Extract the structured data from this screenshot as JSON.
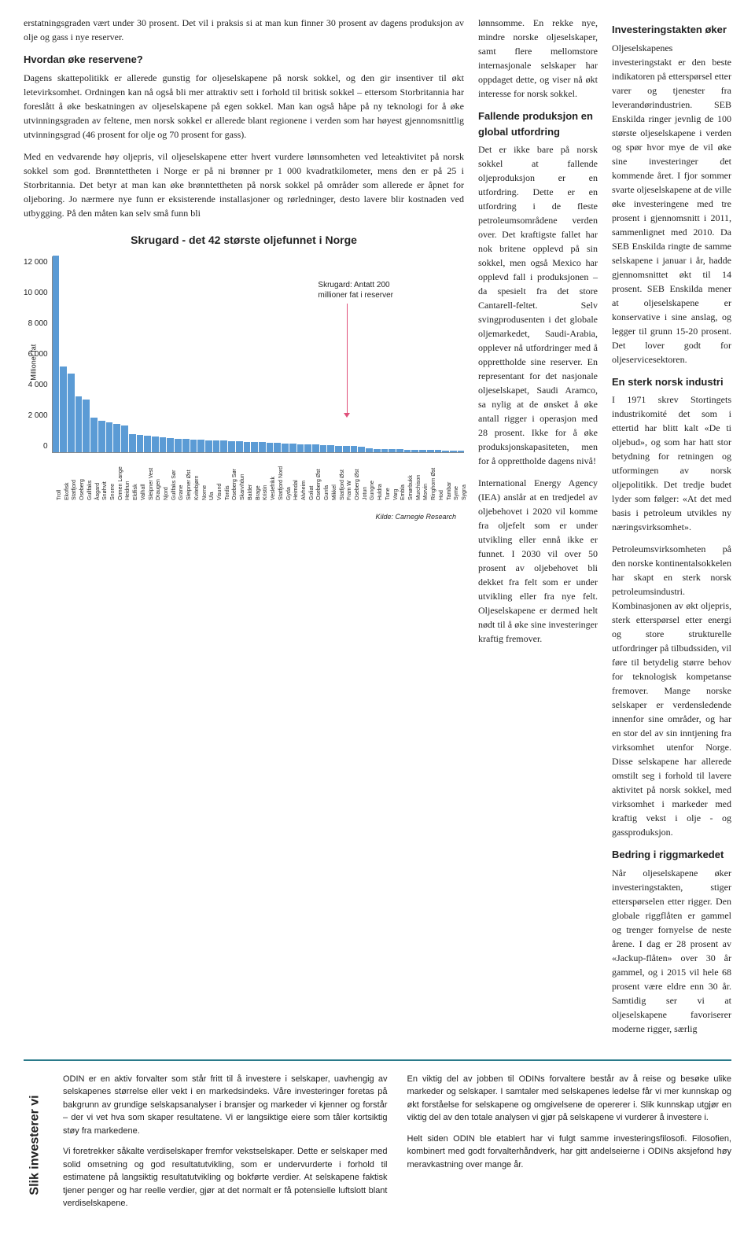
{
  "col1": {
    "p1": "erstatningsgraden vært under 30 prosent. Det vil i praksis si at man kun finner 30 prosent av dagens produksjon av olje og gass i nye reserver.",
    "h1": "Hvordan øke reservene?",
    "p2": "Dagens skattepolitikk er allerede gunstig for oljeselskapene på norsk sokkel, og den gir insentiver til økt letevirksomhet. Ordningen kan nå også bli mer attraktiv sett i forhold til britisk sokkel – ettersom Storbritannia har foreslått å øke beskatningen av oljeselskapene på egen sokkel. Man kan også håpe på ny teknologi for å øke utvinningsgraden av feltene, men norsk sokkel er allerede blant regionene i verden som har høyest gjennomsnittlig utvinningsgrad (46 prosent for olje og 70 prosent for gass).",
    "p3": "Med en vedvarende høy oljepris, vil oljeselskapene etter hvert vurdere lønnsomheten ved leteaktivitet på norsk sokkel som god. Brønntettheten i Norge er på ni brønner pr 1 000 kvadratkilometer, mens den er på 25 i Storbritannia. Det betyr at man kan øke brønntettheten på norsk sokkel på områder som allerede er åpnet for oljeboring. Jo nærmere nye funn er eksisterende installasjoner og rørledninger, desto lavere blir kostnaden ved utbygging. På den måten kan selv små funn bli"
  },
  "col2": {
    "p1": "lønnsomme. En rekke nye, mindre norske oljeselskaper, samt flere mellomstore internasjonale selskaper har oppdaget dette, og viser nå økt interesse for norsk sokkel.",
    "h1": "Fallende produksjon en global utfordring",
    "p2": "Det er ikke bare på norsk sokkel at fallende oljeproduksjon er en utfordring. Dette er en utfordring i de fleste petroleumsområdene verden over. Det kraftigste fallet har nok britene opplevd på sin sokkel, men også Mexico har opplevd fall i produksjonen – da spesielt fra det store Cantarell-feltet. Selv svingprodusenten i det globale oljemarkedet, Saudi-Arabia, opplever nå utfordringer med å opprettholde sine reserver. En representant for det nasjonale oljeselskapet, Saudi Aramco, sa nylig at de ønsket å øke antall rigger i operasjon med 28 prosent. Ikke for å øke produksjonskapasiteten, men for å opprettholde dagens nivå!",
    "p3": "International Energy Agency (IEA) anslår at en tredjedel av oljebehovet i 2020 vil komme fra oljefelt som er under utvikling eller ennå ikke er funnet. I 2030 vil over 50 prosent av oljebehovet bli dekket fra felt som er under utvikling eller fra nye felt. Oljeselskapene er dermed helt nødt til å øke sine investeringer kraftig fremover."
  },
  "col3": {
    "h1": "Investeringstakten øker",
    "p1": "Oljeselskapenes investeringstakt er den beste indikatoren på etterspørsel etter varer og tjenester fra leverandørindustrien. SEB Enskilda ringer jevnlig de 100 største oljeselskapene i verden og spør hvor mye de vil øke sine investeringer det kommende året. I fjor sommer svarte oljeselskapene at de ville øke investeringene med tre prosent i gjennomsnitt i 2011, sammenlignet med 2010. Da SEB Enskilda ringte de samme selskapene i januar i år, hadde gjennomsnittet økt til 14 prosent. SEB Enskilda mener at oljeselskapene er konservative i sine anslag, og legger til grunn 15-20 prosent. Det lover godt for oljeservicesektoren.",
    "h2": "En sterk norsk industri",
    "p2": "I 1971 skrev Stortingets industrikomité det som i ettertid har blitt kalt «De ti oljebud», og som har hatt stor betydning for retningen og utformingen av norsk oljepolitikk. Det tredje budet lyder som følger: «At det med basis i petroleum utvikles ny næringsvirksomhet».",
    "p3": "Petroleumsvirksomheten på den norske kontinentalsokkelen har skapt en sterk norsk petroleumsindustri. Kombinasjonen av økt oljepris, sterk etterspørsel etter energi og store strukturelle utfordringer på tilbudssiden, vil føre til betydelig større behov for teknologisk kompetanse fremover. Mange norske selskaper er verdensledende innenfor sine områder, og har en stor del av sin inntjening fra virksomhet utenfor Norge. Disse selskapene har allerede omstilt seg i forhold til lavere aktivitet på norsk sokkel, med virksomhet i markeder med kraftig vekst i olje - og gassproduksjon.",
    "h3": "Bedring i riggmarkedet",
    "p4": "Når oljeselskapene øker investeringstakten, stiger etterspørselen etter rigger. Den globale riggflåten er gammel og trenger fornyelse de neste årene. I dag er 28 prosent av «Jackup-flåten» over 30 år gammel, og i 2015 vil hele 68 prosent være eldre enn 30 år. Samtidig ser vi at oljeselskapene favoriserer moderne rigger, særlig"
  },
  "chart": {
    "title": "Skrugard - det 42 største oljefunnet i Norge",
    "ylabel": "Millioner fat",
    "ymax": 12000,
    "yticks": [
      "12 000",
      "10 000",
      "8 000",
      "6 000",
      "4 000",
      "2 000",
      "0"
    ],
    "annotation": "Skrugard: Antatt 200\nmillioner fat i reserver",
    "source": "Kilde: Carnegie Research",
    "bar_color": "#5b9bd5",
    "highlight_index": 41,
    "fields": [
      "Troll",
      "Ekofisk",
      "Statfjord",
      "Oseberg",
      "Gullfaks",
      "Åsgard",
      "Snøhvit",
      "Snorre",
      "Ormen Lange",
      "Heidrun",
      "Eldfisk",
      "Valhall",
      "Sleipner Vest",
      "Draugen",
      "Njord",
      "Gullfaks Sør",
      "Grane",
      "Sleipner Øst",
      "Kvitebjørn",
      "Norne",
      "Ula",
      "Visund",
      "Tordis",
      "Oseberg Sør",
      "Skarv/Idun",
      "Balder",
      "Brage",
      "Kristin",
      "Veslefrikk",
      "Statfjord Nord",
      "Gyda",
      "Heimdal",
      "Alvheim",
      "Goliat",
      "Oseberg Øst",
      "Gunfa",
      "Mikkel",
      "Statfjord Øst",
      "Fram W",
      "Oseberg Øst",
      "Jotun",
      "Gungne",
      "Huldra",
      "Tune",
      "Varg",
      "Embla",
      "Smørbukk",
      "Murchison",
      "Morvin",
      "Ringhorn Øst",
      "Hod",
      "Tambar",
      "Syme",
      "Sygna"
    ],
    "values": [
      12000,
      5200,
      4800,
      3400,
      3200,
      2100,
      1900,
      1800,
      1700,
      1600,
      1100,
      1050,
      1000,
      950,
      900,
      850,
      800,
      780,
      760,
      740,
      720,
      700,
      680,
      660,
      640,
      620,
      600,
      580,
      560,
      540,
      520,
      500,
      480,
      460,
      440,
      420,
      400,
      380,
      360,
      340,
      320,
      200,
      180,
      170,
      160,
      150,
      140,
      130,
      120,
      110,
      100,
      90,
      80,
      70
    ]
  },
  "footer": {
    "sidebar": "Slik investerer vi",
    "left": {
      "p1": "ODIN er en aktiv forvalter som står fritt til å investere i selskaper, uavhengig av selskapenes størrelse eller vekt i en markedsindeks. Våre investeringer foretas på bakgrunn av grundige selskapsanalyser i bransjer og markeder vi kjenner og forstår – der vi vet hva som skaper resultatene. Vi er langsiktige eiere som tåler kortsiktig støy fra markedene.",
      "p2": "Vi foretrekker såkalte verdiselskaper fremfor vekstselskaper. Dette er selskaper med solid omsetning og god resultatutvikling, som er undervurderte i forhold til estimatene på langsiktig resultatutvikling og bokførte verdier. At selskapene faktisk tjener penger og har reelle verdier, gjør at det normalt er få potensielle luftslott blant verdiselskapene."
    },
    "right": {
      "p1": "En viktig del av jobben til ODINs forvaltere består av å reise og besøke ulike markeder og selskaper. I samtaler med selskapenes ledelse får vi mer kunnskap og økt forståelse for selskapene og omgivelsene de opererer i. Slik kunnskap utgjør en viktig del av den totale analysen vi gjør på selskapene vi vurderer å investere i.",
      "p2": "Helt siden ODIN ble etablert har vi fulgt samme investeringsfilosofi. Filosofien, kombinert med godt forvalterhåndverk, har gitt andelseierne i ODINs aksjefond høy meravkastning over mange år."
    }
  }
}
